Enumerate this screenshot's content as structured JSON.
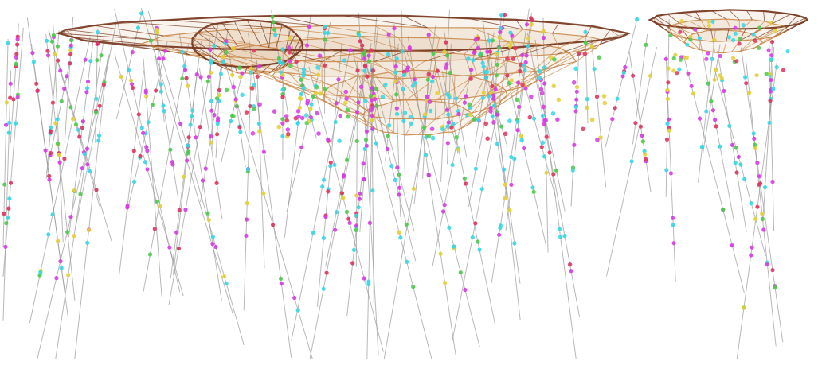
{
  "scene": {
    "kind": "3d-pit-wireframe-with-drillholes",
    "background": "#ffffff",
    "colors": {
      "drillhole": "#9a9a9a",
      "pit_wire": "#c98a4a",
      "pit_edge": "#7a3b22",
      "sample_magenta": "#d63be3",
      "sample_cyan": "#37d7e6",
      "sample_green": "#4cc94c",
      "sample_red": "#e0335e",
      "sample_yellow": "#e3cf35"
    }
  }
}
